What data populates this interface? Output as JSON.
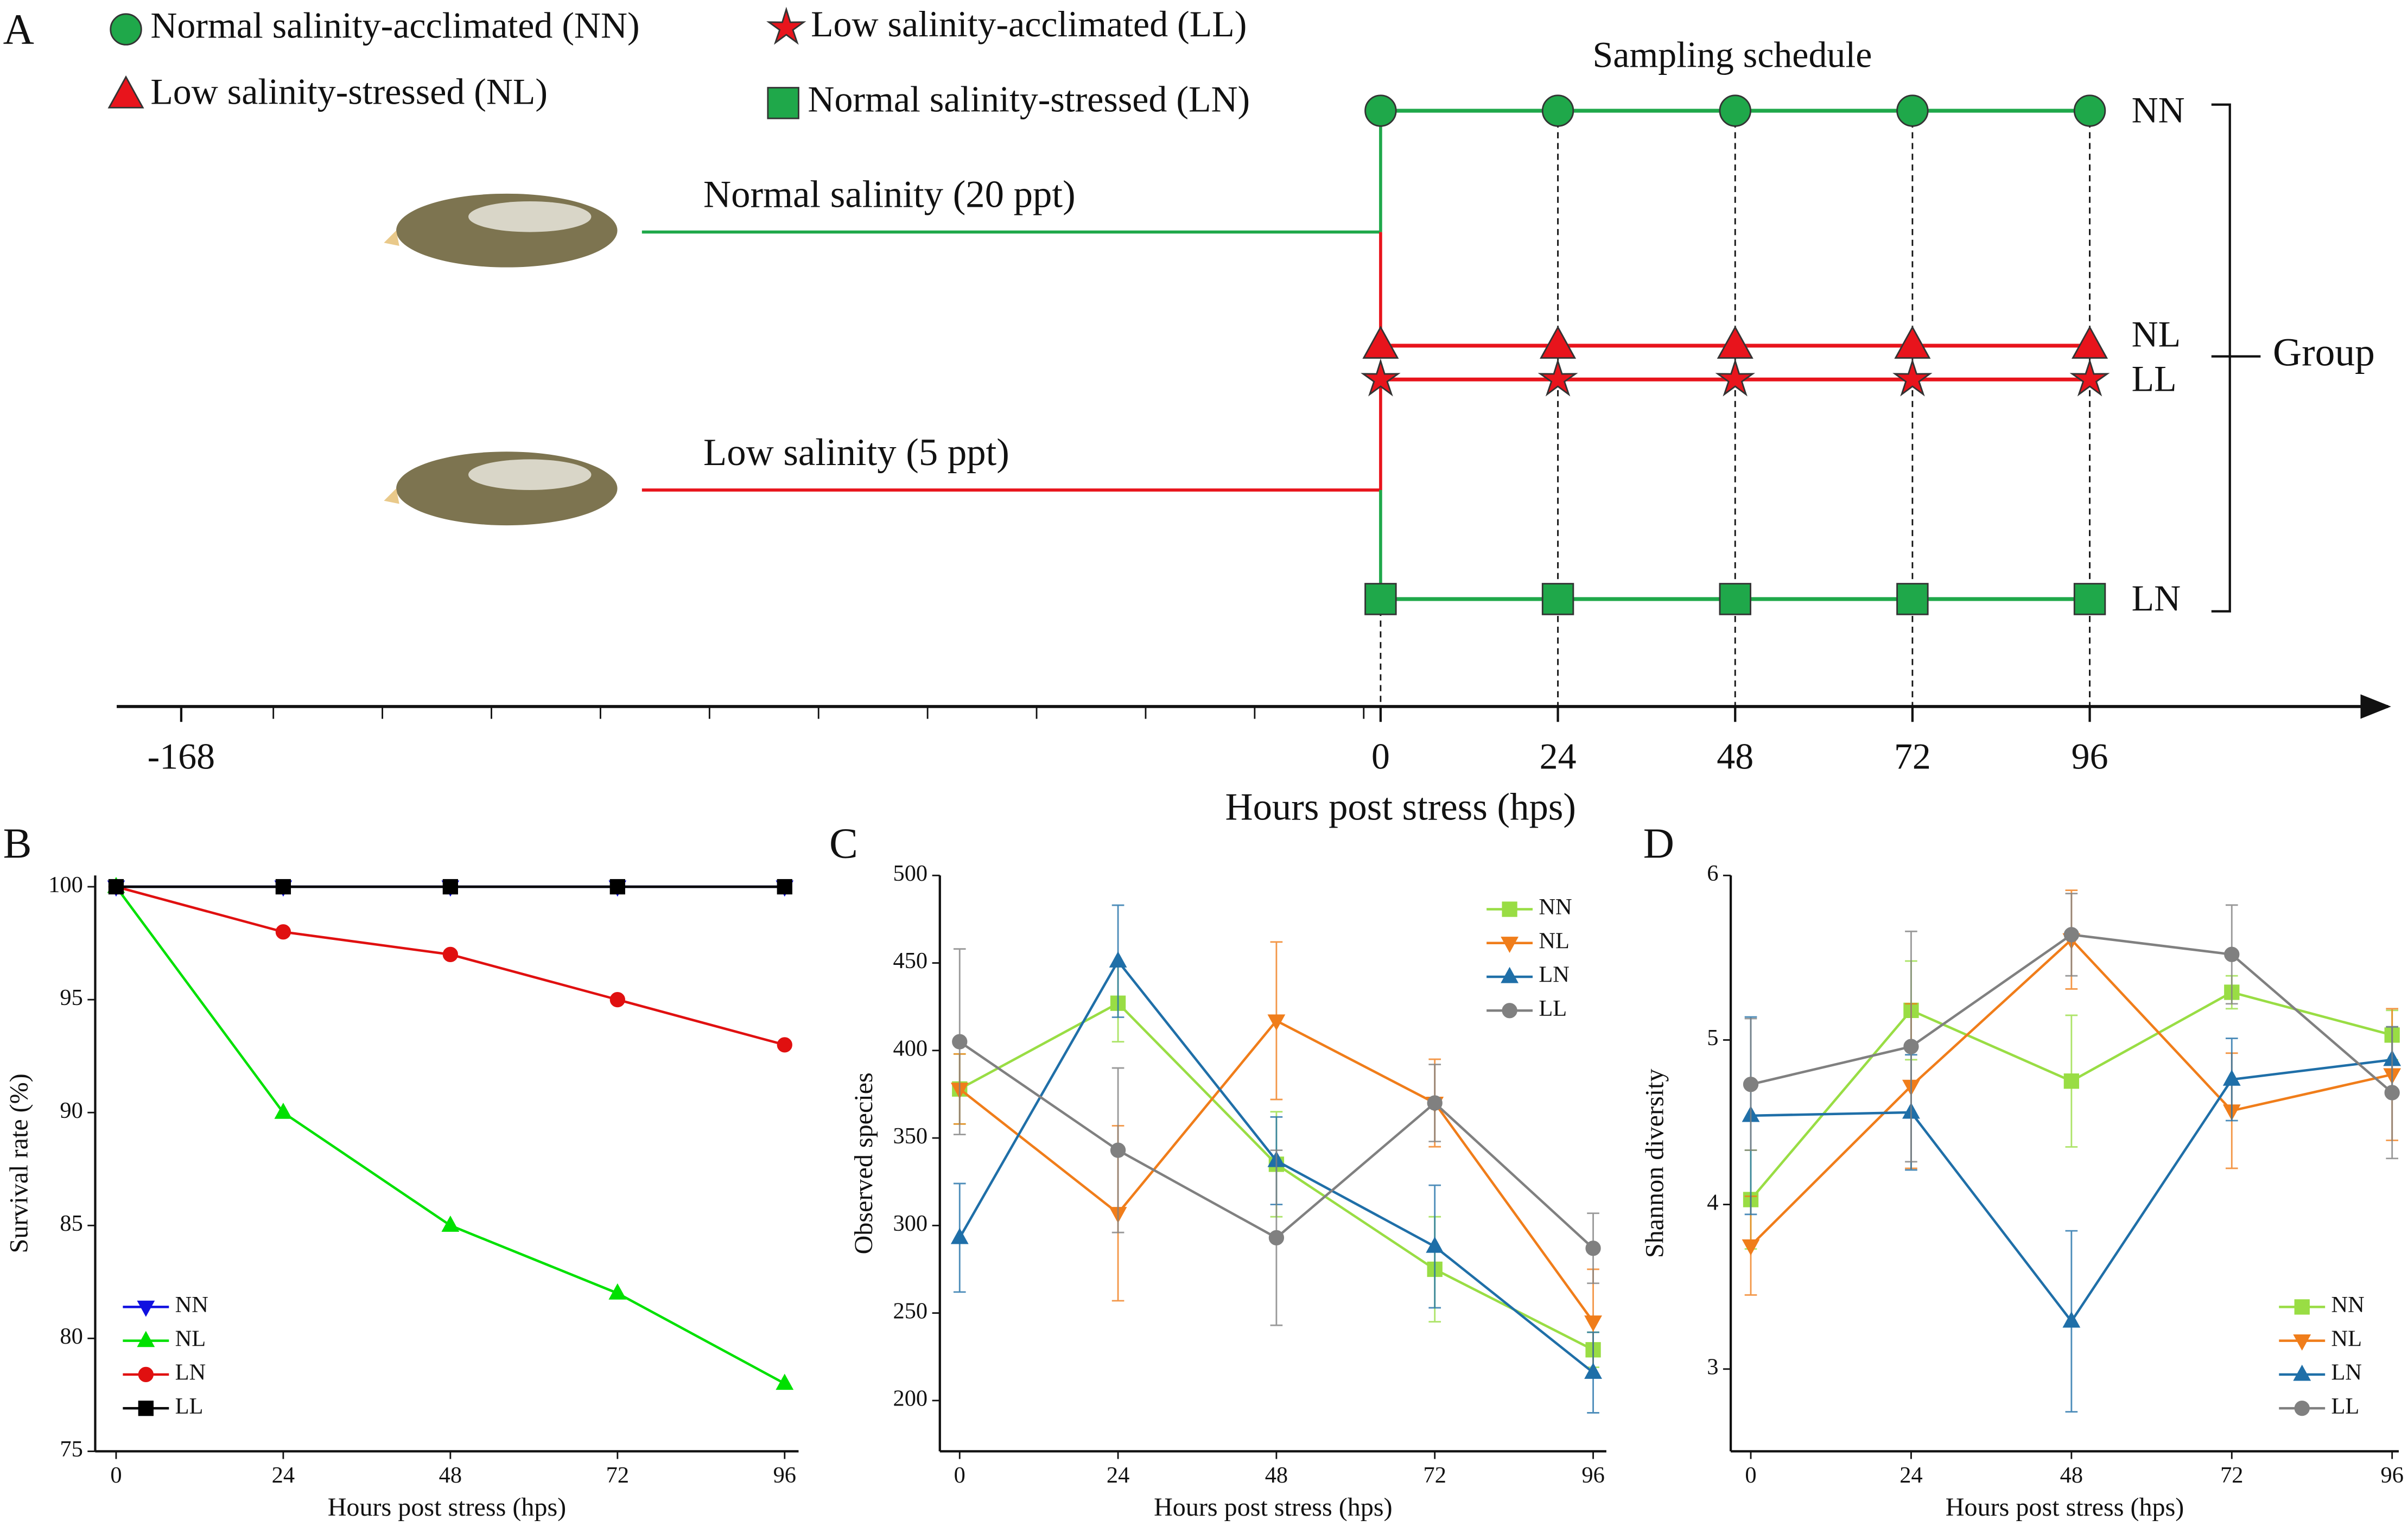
{
  "schematic": {
    "label": "A",
    "title": "Sampling schedule",
    "groups": [
      {
        "name": "NN",
        "legend": "Normal salinity-acclimated (NN)",
        "marker": "circle",
        "color": "#1fa84a"
      },
      {
        "name": "NL",
        "legend": "Low salinity-stressed (NL)",
        "marker": "triangle",
        "color": "#e8141c"
      },
      {
        "name": "LL",
        "legend": "Low salinity-acclimated (LL)",
        "marker": "star",
        "color": "#e8141c"
      },
      {
        "name": "LN",
        "legend": "Normal salinity-stressed (LN)",
        "marker": "square",
        "color": "#1fa84a"
      }
    ],
    "conditions": [
      {
        "text": "Normal salinity (20 ppt)",
        "color": "#1fa84a"
      },
      {
        "text": "Low salinity (5 ppt)",
        "color": "#e8141c"
      }
    ],
    "group_label": "Group",
    "axis": {
      "label": "Hours post stress (hps)",
      "ticks": [
        -168,
        0,
        24,
        48,
        72,
        96
      ]
    }
  },
  "chart_data": [
    {
      "type": "line",
      "label": "B",
      "xlabel": "Hours post stress (hps)",
      "ylabel": "Survival rate (%)",
      "x": [
        0,
        24,
        48,
        72,
        96
      ],
      "xlim": [
        -3,
        98
      ],
      "xticks": [
        0,
        24,
        48,
        72,
        96
      ],
      "ylim": [
        75,
        100.5
      ],
      "yticks": [
        75,
        80,
        85,
        90,
        95,
        100
      ],
      "legend": "lower left",
      "series": [
        {
          "name": "NN",
          "color": "#1010e0",
          "marker": "triangle-down",
          "values": [
            100,
            100,
            100,
            100,
            100
          ]
        },
        {
          "name": "NL",
          "color": "#00e000",
          "marker": "triangle-up",
          "values": [
            100,
            90,
            85,
            82,
            78
          ]
        },
        {
          "name": "LN",
          "color": "#e01010",
          "marker": "circle",
          "values": [
            100,
            98,
            97,
            95,
            93
          ]
        },
        {
          "name": "LL",
          "color": "#000000",
          "marker": "square",
          "values": [
            100,
            100,
            100,
            100,
            100
          ]
        }
      ]
    },
    {
      "type": "line",
      "label": "C",
      "xlabel": "Hours post stress (hps)",
      "ylabel": "Observed species",
      "x": [
        0,
        24,
        48,
        72,
        96
      ],
      "xlim": [
        -3,
        98
      ],
      "xticks": [
        0,
        24,
        48,
        72,
        96
      ],
      "ylim": [
        171,
        500
      ],
      "yticks": [
        200,
        250,
        300,
        350,
        400,
        450,
        500
      ],
      "legend": "upper right",
      "series": [
        {
          "name": "NN",
          "color": "#99dd44",
          "marker": "square",
          "values": [
            378,
            427,
            335,
            275,
            229
          ],
          "errors": [
            20,
            22,
            30,
            30,
            10
          ]
        },
        {
          "name": "NL",
          "color": "#f07d1a",
          "marker": "triangle-down",
          "values": [
            378,
            307,
            417,
            370,
            245
          ],
          "errors": [
            20,
            50,
            45,
            25,
            30
          ]
        },
        {
          "name": "LN",
          "color": "#1f6fa8",
          "marker": "triangle-up",
          "values": [
            293,
            451,
            337,
            288,
            216
          ],
          "errors": [
            31,
            32,
            25,
            35,
            23
          ]
        },
        {
          "name": "LL",
          "color": "#808080",
          "marker": "circle",
          "values": [
            405,
            343,
            293,
            370,
            287
          ],
          "errors": [
            53,
            47,
            50,
            22,
            20
          ]
        }
      ]
    },
    {
      "type": "line",
      "label": "D",
      "xlabel": "Hours post stress (hps)",
      "ylabel": "Shannon diversity",
      "x": [
        0,
        24,
        48,
        72,
        96
      ],
      "xlim": [
        -3,
        97
      ],
      "xticks": [
        0,
        24,
        48,
        72,
        96
      ],
      "ylim": [
        2.5,
        6
      ],
      "yticks": [
        3,
        4,
        5,
        6
      ],
      "legend": "lower right",
      "series": [
        {
          "name": "NN",
          "color": "#99dd44",
          "marker": "square",
          "values": [
            4.03,
            5.18,
            4.75,
            5.29,
            5.03
          ],
          "errors": [
            0.3,
            0.3,
            0.4,
            0.1,
            0.15
          ]
        },
        {
          "name": "NL",
          "color": "#f07d1a",
          "marker": "triangle-down",
          "values": [
            3.75,
            4.72,
            5.61,
            4.57,
            4.79
          ],
          "errors": [
            0.3,
            0.5,
            0.3,
            0.35,
            0.4
          ]
        },
        {
          "name": "LN",
          "color": "#1f6fa8",
          "marker": "triangle-up",
          "values": [
            4.54,
            4.56,
            3.29,
            4.76,
            4.88
          ],
          "errors": [
            0.6,
            0.35,
            0.55,
            0.25,
            0.2
          ]
        },
        {
          "name": "LL",
          "color": "#808080",
          "marker": "circle",
          "values": [
            4.73,
            4.96,
            5.64,
            5.52,
            4.68
          ],
          "errors": [
            0.4,
            0.7,
            0.25,
            0.3,
            0.4
          ]
        }
      ]
    }
  ]
}
